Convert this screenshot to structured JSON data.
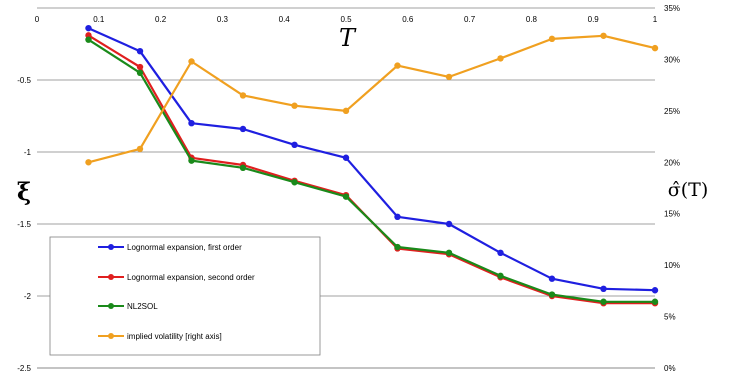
{
  "chart_data": {
    "type": "line",
    "x_label": "T",
    "y_left_label": "ξ",
    "y_right_label": "σ̂(T)",
    "x_range": [
      0,
      1
    ],
    "x_ticks": [
      "0",
      "0.1",
      "0.2",
      "0.3",
      "0.4",
      "0.5",
      "0.6",
      "0.7",
      "0.8",
      "0.9",
      "1"
    ],
    "y_left_range": [
      -2.5,
      0
    ],
    "y_left_ticks": [
      "-0.5",
      "-1",
      "-1.5",
      "-2",
      "-2.5"
    ],
    "y_right_range": [
      0,
      35
    ],
    "y_right_ticks": [
      "0%",
      "5%",
      "10%",
      "15%",
      "20%",
      "25%",
      "30%",
      "35%"
    ],
    "grid": "horizontal",
    "legend_position": "lower-left",
    "x": [
      0.0833,
      0.1667,
      0.25,
      0.3333,
      0.4167,
      0.5,
      0.5833,
      0.6667,
      0.75,
      0.8333,
      0.9167,
      1.0
    ],
    "series": [
      {
        "name": "Lognormal expansion, first order",
        "axis": "left",
        "color": "#1f1fe0",
        "values": [
          -0.14,
          -0.3,
          -0.8,
          -0.84,
          -0.95,
          -1.04,
          -1.45,
          -1.5,
          -1.7,
          -1.88,
          -1.95,
          -1.96
        ]
      },
      {
        "name": "Lognormal expansion, second order",
        "axis": "left",
        "color": "#e01f1f",
        "values": [
          -0.19,
          -0.41,
          -1.04,
          -1.09,
          -1.2,
          -1.3,
          -1.67,
          -1.71,
          -1.87,
          -2.0,
          -2.05,
          -2.05
        ]
      },
      {
        "name": "NL2SOL",
        "axis": "left",
        "color": "#1a8a1a",
        "values": [
          -0.22,
          -0.45,
          -1.06,
          -1.11,
          -1.21,
          -1.31,
          -1.66,
          -1.7,
          -1.86,
          -1.99,
          -2.04,
          -2.04
        ]
      },
      {
        "name": "implied volatility [right axis]",
        "axis": "right",
        "color": "#f0a020",
        "values": [
          20.0,
          21.3,
          29.8,
          26.5,
          25.5,
          25.0,
          29.4,
          28.3,
          30.1,
          32.0,
          32.3,
          31.1
        ]
      }
    ]
  }
}
